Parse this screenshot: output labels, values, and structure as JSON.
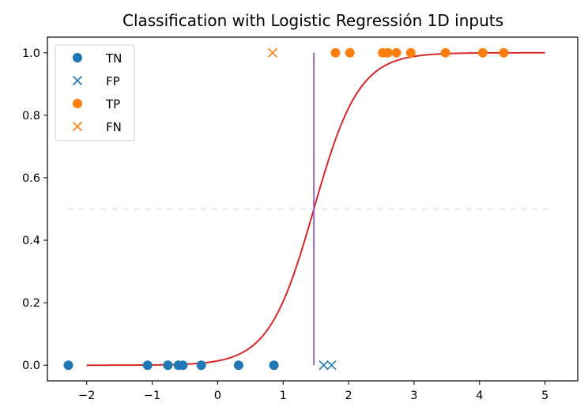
{
  "chart_data": {
    "type": "scatter",
    "title": "Classification with Logistic Regressión 1D inputs",
    "xlabel": "",
    "ylabel": "",
    "xlim": [
      -2.6,
      5.5
    ],
    "ylim": [
      -0.05,
      1.05
    ],
    "x_ticks": [
      -2,
      -1,
      0,
      1,
      2,
      3,
      4,
      5
    ],
    "x_tick_labels": [
      "−2",
      "−1",
      "0",
      "1",
      "2",
      "3",
      "4",
      "5"
    ],
    "y_ticks": [
      0.0,
      0.2,
      0.4,
      0.6,
      0.8,
      1.0
    ],
    "y_tick_labels": [
      "0.0",
      "0.2",
      "0.4",
      "0.6",
      "0.8",
      "1.0"
    ],
    "grid": false,
    "legend_position": "top-left",
    "series": [
      {
        "name": "TN",
        "marker": "circle",
        "color": "#1f77b4",
        "x": [
          -2.28,
          -1.07,
          -0.76,
          -0.6,
          -0.53,
          -0.25,
          0.32,
          0.86
        ],
        "y": [
          0,
          0,
          0,
          0,
          0,
          0,
          0,
          0
        ]
      },
      {
        "name": "FP",
        "marker": "x",
        "color": "#1f77b4",
        "x": [
          1.62,
          1.74
        ],
        "y": [
          0,
          0
        ]
      },
      {
        "name": "TP",
        "marker": "circle",
        "color": "#ff7f0e",
        "x": [
          1.8,
          2.02,
          2.52,
          2.6,
          2.73,
          2.95,
          3.48,
          4.05,
          4.37
        ],
        "y": [
          1,
          1,
          1,
          1,
          1,
          1,
          1,
          1,
          1
        ]
      },
      {
        "name": "FN",
        "marker": "x",
        "color": "#ff7f0e",
        "x": [
          0.84
        ],
        "y": [
          1
        ]
      }
    ],
    "sigmoid_curve": {
      "color": "#d62728",
      "x_range": [
        -2,
        5
      ],
      "midpoint": 1.47,
      "slope": 2.9
    },
    "decision_boundary": {
      "color": "#9467bd",
      "x": 1.47,
      "y_range": [
        0,
        1
      ]
    },
    "threshold_line": {
      "color": "#e8e8e8",
      "style": "dashed",
      "y": 0.5,
      "x_range": [
        -2.3,
        5.1
      ]
    }
  }
}
